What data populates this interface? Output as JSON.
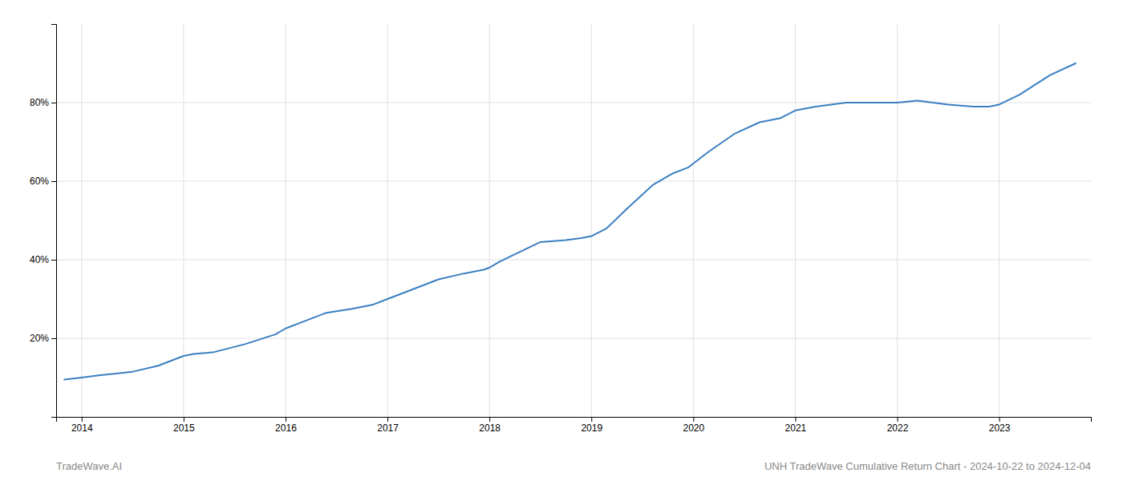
{
  "chart_data": {
    "type": "line",
    "x": [
      2013.83,
      2014.0,
      2014.15,
      2014.5,
      2014.75,
      2015.0,
      2015.1,
      2015.3,
      2015.6,
      2015.9,
      2016.0,
      2016.15,
      2016.4,
      2016.65,
      2016.85,
      2017.0,
      2017.2,
      2017.5,
      2017.75,
      2017.95,
      2018.0,
      2018.1,
      2018.3,
      2018.5,
      2018.75,
      2018.9,
      2019.0,
      2019.15,
      2019.35,
      2019.6,
      2019.8,
      2019.95,
      2020.0,
      2020.15,
      2020.4,
      2020.65,
      2020.85,
      2021.0,
      2021.2,
      2021.5,
      2021.75,
      2022.0,
      2022.2,
      2022.5,
      2022.75,
      2022.9,
      2023.0,
      2023.2,
      2023.5,
      2023.75
    ],
    "values": [
      9.5,
      10.0,
      10.5,
      11.5,
      13.0,
      15.5,
      16.0,
      16.5,
      18.5,
      21.0,
      22.5,
      24.0,
      26.5,
      27.5,
      28.5,
      30.0,
      32.0,
      35.0,
      36.5,
      37.5,
      38.0,
      39.5,
      42.0,
      44.5,
      45.0,
      45.5,
      46.0,
      48.0,
      53.0,
      59.0,
      62.0,
      63.5,
      64.5,
      67.5,
      72.0,
      75.0,
      76.0,
      78.0,
      79.0,
      80.0,
      80.0,
      80.0,
      80.5,
      79.5,
      79.0,
      79.0,
      79.5,
      82.0,
      87.0,
      90.0
    ],
    "color": "#3a7fc1",
    "xlim": [
      2013.75,
      2023.9
    ],
    "xticks": [
      2014,
      2015,
      2016,
      2017,
      2018,
      2019,
      2020,
      2021,
      2022,
      2023
    ],
    "ylim": [
      0,
      100
    ],
    "yticks": [
      {
        "value": 20,
        "label": "20%"
      },
      {
        "value": 40,
        "label": "40%"
      },
      {
        "value": 60,
        "label": "60%"
      },
      {
        "value": 80,
        "label": "80%"
      }
    ],
    "grid": true,
    "annotations": [
      "TradeWave.AI",
      "UNH TradeWave Cumulative Return Chart - 2024-10-22 to 2024-12-04"
    ]
  }
}
